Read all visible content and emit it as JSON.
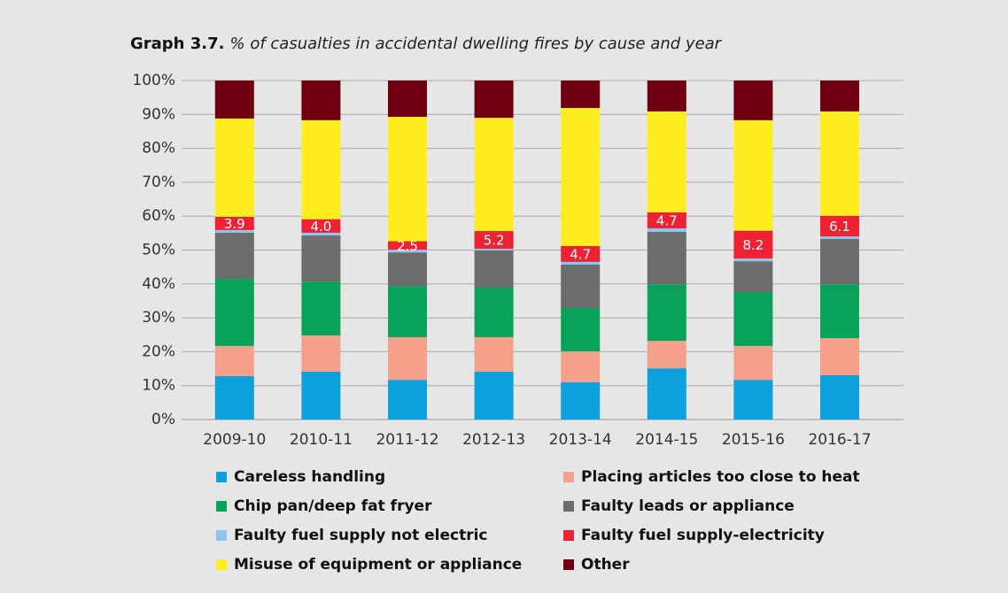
{
  "chart_data": {
    "type": "stacked_bar",
    "title": "Graph 3.7.",
    "subtitle": "% of casualties in accidental dwelling fires by cause and year",
    "categories": [
      "2009-10",
      "2010-11",
      "2011-12",
      "2012-13",
      "2013-14",
      "2014-15",
      "2015-16",
      "2016-17"
    ],
    "series": [
      {
        "name": "Careless handling",
        "color": "#0ca0dc",
        "values": [
          12.8,
          14.1,
          11.7,
          14.1,
          11.0,
          15.1,
          11.7,
          13.1
        ]
      },
      {
        "name": "Placing articles too close to heat",
        "color": "#f4a08a",
        "values": [
          8.9,
          10.7,
          12.6,
          10.2,
          9.1,
          8.1,
          10.0,
          10.9
        ]
      },
      {
        "name": "Chip pan/deep fat fryer",
        "color": "#0aa35a",
        "values": [
          19.8,
          15.9,
          15.1,
          14.6,
          12.8,
          16.7,
          15.9,
          15.9
        ]
      },
      {
        "name": "Faulty leads or appliance",
        "color": "#6d6d6d",
        "values": [
          13.6,
          13.6,
          9.9,
          11.0,
          12.8,
          15.5,
          9.1,
          13.4
        ]
      },
      {
        "name": "Faulty fuel supply not electric",
        "color": "#8ec5ee",
        "values": [
          0.8,
          0.8,
          0.8,
          0.5,
          0.8,
          1.0,
          0.8,
          0.7
        ]
      },
      {
        "name": "Faulty fuel supply-electricity",
        "color": "#ee2233",
        "values": [
          3.9,
          4.0,
          2.5,
          5.2,
          4.7,
          4.7,
          8.2,
          6.1
        ],
        "value_labels": [
          "3.9",
          "4.0",
          "2.5",
          "5.2",
          "4.7",
          "4.7",
          "8.2",
          "6.1"
        ]
      },
      {
        "name": "Misuse of equipment or appliance",
        "color": "#ffed1f",
        "values": [
          29.0,
          29.2,
          36.7,
          33.4,
          40.7,
          29.8,
          32.6,
          30.8
        ]
      },
      {
        "name": "Other",
        "color": "#700010",
        "values": [
          11.2,
          11.7,
          10.7,
          11.0,
          8.1,
          9.1,
          11.7,
          9.1
        ]
      }
    ],
    "ylim": [
      0,
      100
    ],
    "yticks": [
      {
        "value": 0,
        "label": "0%"
      },
      {
        "value": 10,
        "label": "10%"
      },
      {
        "value": 20,
        "label": "20%"
      },
      {
        "value": 30,
        "label": "30%"
      },
      {
        "value": 40,
        "label": "40%"
      },
      {
        "value": 50,
        "label": "50%"
      },
      {
        "value": 60,
        "label": "60%"
      },
      {
        "value": 70,
        "label": "70%"
      },
      {
        "value": 80,
        "label": "80%"
      },
      {
        "value": 90,
        "label": "90%"
      },
      {
        "value": 100,
        "label": "100%"
      }
    ],
    "grid": true
  }
}
